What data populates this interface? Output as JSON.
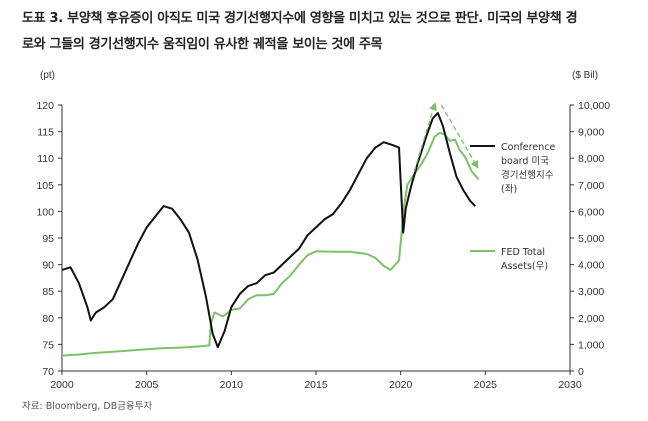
{
  "header": {
    "title_line1": "도표 3. 부양책 후유증이 아직도 미국 경기선행지수에 영향을 미치고 있는 것으로 판단. 미국의 부양책 경",
    "title_line2": "로와 그들의 경기선행지수 움직임이 유사한 궤적을 보이는 것에 주목"
  },
  "source": "자료: Bloomberg, DB금융투자",
  "chart_data": {
    "type": "line",
    "left_unit": "(pt)",
    "right_unit": "($ Bil)",
    "x_range": [
      2000,
      2030
    ],
    "x_ticks": [
      "2000",
      "2005",
      "2010",
      "2015",
      "2020",
      "2025",
      "2030"
    ],
    "left_ylim": [
      70,
      120
    ],
    "left_ticks": [
      "70",
      "75",
      "80",
      "85",
      "90",
      "95",
      "100",
      "105",
      "110",
      "115",
      "120"
    ],
    "right_ylim": [
      0,
      10000
    ],
    "right_ticks": [
      "0",
      "1,000",
      "2,000",
      "3,000",
      "4,000",
      "5,000",
      "6,000",
      "7,000",
      "8,000",
      "9,000",
      "10,000"
    ],
    "grid": false,
    "colors": {
      "lei": "#111111",
      "fed": "#7dc06b",
      "arrow": "#7dc06b",
      "axis": "#333333"
    },
    "series": [
      {
        "name": "Conference board 미국 경기선행지수 (좌)",
        "legend_lines": [
          "Conference",
          "board 미국",
          "경기선행지수",
          "(좌)"
        ],
        "axis": "left",
        "x": [
          2000.0,
          2000.5,
          2001.0,
          2001.5,
          2001.7,
          2002.0,
          2002.5,
          2003.0,
          2003.5,
          2004.0,
          2004.5,
          2005.0,
          2005.5,
          2006.0,
          2006.5,
          2007.0,
          2007.5,
          2008.0,
          2008.5,
          2008.9,
          2009.2,
          2009.6,
          2010.0,
          2010.5,
          2011.0,
          2011.5,
          2012.0,
          2012.5,
          2013.0,
          2013.5,
          2014.0,
          2014.5,
          2015.0,
          2015.5,
          2016.0,
          2016.5,
          2017.0,
          2017.5,
          2018.0,
          2018.5,
          2019.0,
          2019.5,
          2019.9,
          2020.15,
          2020.3,
          2020.6,
          2021.0,
          2021.5,
          2021.9,
          2022.2,
          2022.5,
          2022.9,
          2023.3,
          2023.7,
          2024.1,
          2024.4
        ],
        "values": [
          89.0,
          89.5,
          86.5,
          82.0,
          79.5,
          81.0,
          82.0,
          83.5,
          87.0,
          90.5,
          94.0,
          97.0,
          99.0,
          101.0,
          100.5,
          98.5,
          96.0,
          91.0,
          84.0,
          77.0,
          74.5,
          77.5,
          82.0,
          84.5,
          86.0,
          86.5,
          88.0,
          88.5,
          90.0,
          91.5,
          93.0,
          95.5,
          97.0,
          98.5,
          99.5,
          101.5,
          104.0,
          107.0,
          110.0,
          112.0,
          113.0,
          112.5,
          112.0,
          96.0,
          100.5,
          104.5,
          109.0,
          114.0,
          117.5,
          118.5,
          116.0,
          111.0,
          106.5,
          104.0,
          102.0,
          101.0
        ]
      },
      {
        "name": "FED Total Assets(우)",
        "legend_lines": [
          "FED Total",
          "Assets(우)"
        ],
        "axis": "right",
        "x": [
          2000.0,
          2001.0,
          2002.0,
          2003.0,
          2004.0,
          2005.0,
          2006.0,
          2007.0,
          2008.0,
          2008.7,
          2008.8,
          2009.0,
          2009.5,
          2010.0,
          2010.5,
          2011.0,
          2011.5,
          2012.0,
          2012.5,
          2013.0,
          2013.5,
          2014.0,
          2014.5,
          2015.0,
          2016.0,
          2017.0,
          2018.0,
          2018.5,
          2019.0,
          2019.4,
          2019.9,
          2020.2,
          2020.4,
          2020.8,
          2021.2,
          2021.6,
          2022.0,
          2022.3,
          2022.6,
          2022.9,
          2023.2,
          2023.5,
          2023.8,
          2024.2,
          2024.6
        ],
        "values": [
          580,
          620,
          680,
          720,
          770,
          820,
          860,
          880,
          920,
          960,
          1800,
          2200,
          2050,
          2300,
          2350,
          2700,
          2850,
          2850,
          2900,
          3300,
          3600,
          4000,
          4350,
          4500,
          4480,
          4480,
          4400,
          4250,
          3950,
          3800,
          4150,
          6200,
          7000,
          7400,
          7750,
          8200,
          8800,
          8950,
          8900,
          8650,
          8700,
          8300,
          8050,
          7500,
          7200
        ]
      }
    ],
    "annotations": [
      {
        "type": "arrow",
        "from": [
          2020.8,
          7500
        ],
        "to": [
          2022.0,
          10000
        ]
      },
      {
        "type": "arrow",
        "from": [
          2022.4,
          10000
        ],
        "to": [
          2024.5,
          7700
        ]
      }
    ]
  }
}
